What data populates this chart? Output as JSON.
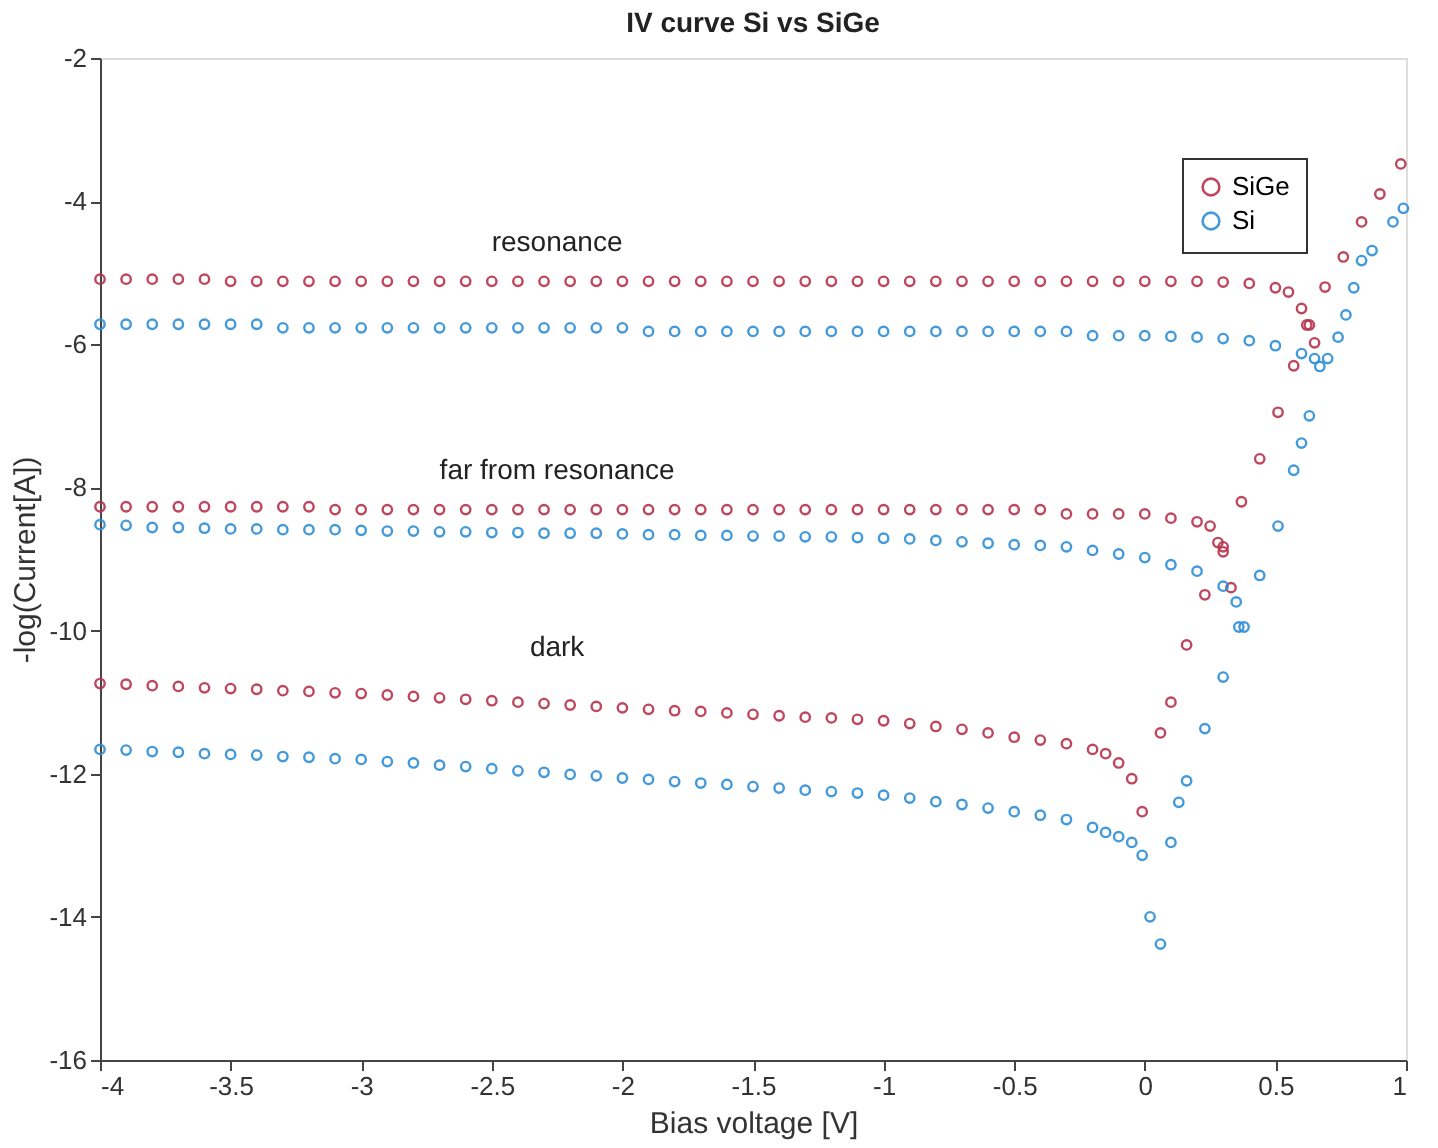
{
  "chart_data": {
    "type": "scatter",
    "title": "IV curve Si vs SiGe",
    "xlabel": "Bias voltage [V]",
    "ylabel": "-log(Current[A])",
    "xlim": [
      -4,
      1
    ],
    "xticks": [
      -4,
      -3.5,
      -3,
      -2.5,
      -2,
      -1.5,
      -1,
      -0.5,
      0,
      0.5,
      1
    ],
    "ylim": [
      -16,
      -2
    ],
    "yticks": [
      -16,
      -14,
      -12,
      -10,
      -8,
      -6,
      -4,
      -2
    ],
    "grid": false,
    "legend": "top right",
    "marker": "circle",
    "annotations": [
      "resonance",
      "far from resonance",
      "dark"
    ],
    "series": [
      {
        "name": "SiGe",
        "color": "#b8344f",
        "x": [
          -4,
          -3.9,
          -3.8,
          -3.7,
          -3.6,
          -3.5,
          -3.4,
          -3.3,
          -3.2,
          -3.1,
          -3,
          -2.9,
          -2.8,
          -2.7,
          -2.6,
          -2.5,
          -2.4,
          -2.3,
          -2.2,
          -2.1,
          -2,
          -1.9,
          -1.8,
          -1.7,
          -1.6,
          -1.5,
          -1.4,
          -1.3,
          -1.2,
          -1.1,
          -1,
          -0.9,
          -0.8,
          -0.7,
          -0.6,
          -0.5,
          -0.4,
          -0.3,
          -0.2,
          -0.1,
          0,
          0.1,
          0.2,
          0.3,
          0.4,
          0.5,
          0.55,
          0.6,
          0.62,
          0.65
        ],
        "values": [
          -5.09,
          -5.09,
          -5.09,
          -5.09,
          -5.09,
          -5.12,
          -5.12,
          -5.12,
          -5.12,
          -5.12,
          -5.12,
          -5.12,
          -5.12,
          -5.12,
          -5.12,
          -5.12,
          -5.12,
          -5.12,
          -5.12,
          -5.12,
          -5.12,
          -5.12,
          -5.12,
          -5.12,
          -5.12,
          -5.12,
          -5.12,
          -5.12,
          -5.12,
          -5.12,
          -5.12,
          -5.12,
          -5.12,
          -5.12,
          -5.12,
          -5.12,
          -5.12,
          -5.12,
          -5.12,
          -5.12,
          -5.12,
          -5.12,
          -5.12,
          -5.13,
          -5.15,
          -5.21,
          -5.27,
          -5.5,
          -5.73,
          -5.98
        ]
      },
      {
        "name": "Si",
        "color": "#2f8fd6",
        "x": [
          -4,
          -3.9,
          -3.8,
          -3.7,
          -3.6,
          -3.5,
          -3.4,
          -3.3,
          -3.2,
          -3.1,
          -3,
          -2.9,
          -2.8,
          -2.7,
          -2.6,
          -2.5,
          -2.4,
          -2.3,
          -2.2,
          -2.1,
          -2,
          -1.9,
          -1.8,
          -1.7,
          -1.6,
          -1.5,
          -1.4,
          -1.3,
          -1.2,
          -1.1,
          -1,
          -0.9,
          -0.8,
          -0.7,
          -0.6,
          -0.5,
          -0.4,
          -0.3,
          -0.2,
          -0.1,
          0,
          0.1,
          0.2,
          0.3,
          0.4,
          0.5,
          0.6,
          0.65,
          0.67,
          0.7
        ],
        "values": [
          -5.72,
          -5.72,
          -5.72,
          -5.72,
          -5.72,
          -5.72,
          -5.72,
          -5.77,
          -5.77,
          -5.77,
          -5.77,
          -5.77,
          -5.77,
          -5.77,
          -5.77,
          -5.77,
          -5.77,
          -5.77,
          -5.77,
          -5.77,
          -5.77,
          -5.82,
          -5.82,
          -5.82,
          -5.82,
          -5.82,
          -5.82,
          -5.82,
          -5.82,
          -5.82,
          -5.82,
          -5.82,
          -5.82,
          -5.82,
          -5.82,
          -5.82,
          -5.82,
          -5.82,
          -5.88,
          -5.88,
          -5.88,
          -5.89,
          -5.9,
          -5.92,
          -5.95,
          -6.02,
          -6.13,
          -6.2,
          -6.31,
          -6.2
        ]
      },
      {
        "color": "#b8344f",
        "x": [
          -4,
          -3.9,
          -3.8,
          -3.7,
          -3.6,
          -3.5,
          -3.4,
          -3.3,
          -3.2,
          -3.1,
          -3,
          -2.9,
          -2.8,
          -2.7,
          -2.6,
          -2.5,
          -2.4,
          -2.3,
          -2.2,
          -2.1,
          -2,
          -1.9,
          -1.8,
          -1.7,
          -1.6,
          -1.5,
          -1.4,
          -1.3,
          -1.2,
          -1.1,
          -1,
          -0.9,
          -0.8,
          -0.7,
          -0.6,
          -0.5,
          -0.4,
          -0.3,
          -0.2,
          -0.1,
          0,
          0.1,
          0.2,
          0.25,
          0.28,
          0.3,
          0.33
        ],
        "values": [
          -8.27,
          -8.27,
          -8.27,
          -8.27,
          -8.27,
          -8.27,
          -8.27,
          -8.27,
          -8.27,
          -8.31,
          -8.31,
          -8.31,
          -8.31,
          -8.31,
          -8.31,
          -8.31,
          -8.31,
          -8.31,
          -8.31,
          -8.31,
          -8.31,
          -8.31,
          -8.31,
          -8.31,
          -8.31,
          -8.31,
          -8.31,
          -8.31,
          -8.31,
          -8.31,
          -8.31,
          -8.31,
          -8.31,
          -8.31,
          -8.31,
          -8.31,
          -8.31,
          -8.37,
          -8.37,
          -8.37,
          -8.37,
          -8.43,
          -8.48,
          -8.54,
          -8.77,
          -8.9,
          -9.4
        ]
      },
      {
        "color": "#2f8fd6",
        "x": [
          -4,
          -3.9,
          -3.8,
          -3.7,
          -3.6,
          -3.5,
          -3.4,
          -3.3,
          -3.2,
          -3.1,
          -3,
          -2.9,
          -2.8,
          -2.7,
          -2.6,
          -2.5,
          -2.4,
          -2.3,
          -2.2,
          -2.1,
          -2,
          -1.9,
          -1.8,
          -1.7,
          -1.6,
          -1.5,
          -1.4,
          -1.3,
          -1.2,
          -1.1,
          -1,
          -0.9,
          -0.8,
          -0.7,
          -0.6,
          -0.5,
          -0.4,
          -0.3,
          -0.2,
          -0.1,
          0,
          0.1,
          0.2,
          0.3,
          0.35,
          0.38
        ],
        "values": [
          -8.52,
          -8.53,
          -8.56,
          -8.56,
          -8.57,
          -8.58,
          -8.58,
          -8.59,
          -8.59,
          -8.59,
          -8.6,
          -8.61,
          -8.61,
          -8.62,
          -8.62,
          -8.63,
          -8.63,
          -8.64,
          -8.64,
          -8.64,
          -8.65,
          -8.66,
          -8.66,
          -8.67,
          -8.67,
          -8.68,
          -8.68,
          -8.69,
          -8.69,
          -8.7,
          -8.71,
          -8.72,
          -8.74,
          -8.76,
          -8.78,
          -8.8,
          -8.81,
          -8.83,
          -8.88,
          -8.93,
          -8.98,
          -9.08,
          -9.17,
          -9.38,
          -9.6,
          -9.95
        ]
      },
      {
        "color": "#b8344f",
        "x": [
          -4,
          -3.9,
          -3.8,
          -3.7,
          -3.6,
          -3.5,
          -3.4,
          -3.3,
          -3.2,
          -3.1,
          -3,
          -2.9,
          -2.8,
          -2.7,
          -2.6,
          -2.5,
          -2.4,
          -2.3,
          -2.2,
          -2.1,
          -2,
          -1.9,
          -1.8,
          -1.7,
          -1.6,
          -1.5,
          -1.4,
          -1.3,
          -1.2,
          -1.1,
          -1,
          -0.9,
          -0.8,
          -0.7,
          -0.6,
          -0.5,
          -0.4,
          -0.3,
          -0.2,
          -0.15,
          -0.1,
          -0.05,
          -0.01,
          0.06,
          0.1,
          0.16,
          0.23,
          0.3,
          0.37,
          0.44,
          0.51,
          0.57,
          0.63,
          0.69,
          0.76,
          0.83,
          0.9,
          0.98
        ],
        "values": [
          -10.74,
          -10.75,
          -10.77,
          -10.78,
          -10.8,
          -10.81,
          -10.82,
          -10.84,
          -10.85,
          -10.87,
          -10.88,
          -10.9,
          -10.92,
          -10.94,
          -10.96,
          -10.98,
          -11.0,
          -11.02,
          -11.04,
          -11.06,
          -11.08,
          -11.1,
          -11.12,
          -11.13,
          -11.15,
          -11.17,
          -11.19,
          -11.21,
          -11.22,
          -11.24,
          -11.26,
          -11.3,
          -11.34,
          -11.38,
          -11.43,
          -11.49,
          -11.53,
          -11.58,
          -11.66,
          -11.72,
          -11.85,
          -12.07,
          -12.53,
          -11.43,
          -11.0,
          -10.2,
          -9.5,
          -8.83,
          -8.2,
          -7.6,
          -6.95,
          -6.3,
          -5.73,
          -5.2,
          -4.78,
          -4.29,
          -3.9,
          -3.48
        ]
      },
      {
        "color": "#2f8fd6",
        "x": [
          -4,
          -3.9,
          -3.8,
          -3.7,
          -3.6,
          -3.5,
          -3.4,
          -3.3,
          -3.2,
          -3.1,
          -3,
          -2.9,
          -2.8,
          -2.7,
          -2.6,
          -2.5,
          -2.4,
          -2.3,
          -2.2,
          -2.1,
          -2,
          -1.9,
          -1.8,
          -1.7,
          -1.6,
          -1.5,
          -1.4,
          -1.3,
          -1.2,
          -1.1,
          -1,
          -0.9,
          -0.8,
          -0.7,
          -0.6,
          -0.5,
          -0.4,
          -0.3,
          -0.2,
          -0.15,
          -0.1,
          -0.05,
          -0.01,
          0.02,
          0.06,
          0.1,
          0.13,
          0.16,
          0.23,
          0.3,
          0.36,
          0.44,
          0.51,
          0.57,
          0.6,
          0.63,
          0.74,
          0.77,
          0.8,
          0.83,
          0.87,
          0.95,
          0.99
        ],
        "values": [
          -11.66,
          -11.67,
          -11.69,
          -11.7,
          -11.72,
          -11.73,
          -11.74,
          -11.76,
          -11.77,
          -11.79,
          -11.8,
          -11.83,
          -11.85,
          -11.88,
          -11.9,
          -11.93,
          -11.96,
          -11.98,
          -12.01,
          -12.03,
          -12.06,
          -12.08,
          -12.11,
          -12.13,
          -12.15,
          -12.18,
          -12.2,
          -12.23,
          -12.25,
          -12.27,
          -12.3,
          -12.34,
          -12.39,
          -12.43,
          -12.48,
          -12.53,
          -12.58,
          -12.64,
          -12.75,
          -12.82,
          -12.88,
          -12.96,
          -13.14,
          -14.0,
          -14.38,
          -12.96,
          -12.4,
          -12.1,
          -11.37,
          -10.65,
          -9.95,
          -9.23,
          -8.54,
          -7.76,
          -7.38,
          -7.0,
          -5.9,
          -5.59,
          -5.21,
          -4.83,
          -4.69,
          -4.29,
          -4.1
        ]
      }
    ]
  }
}
